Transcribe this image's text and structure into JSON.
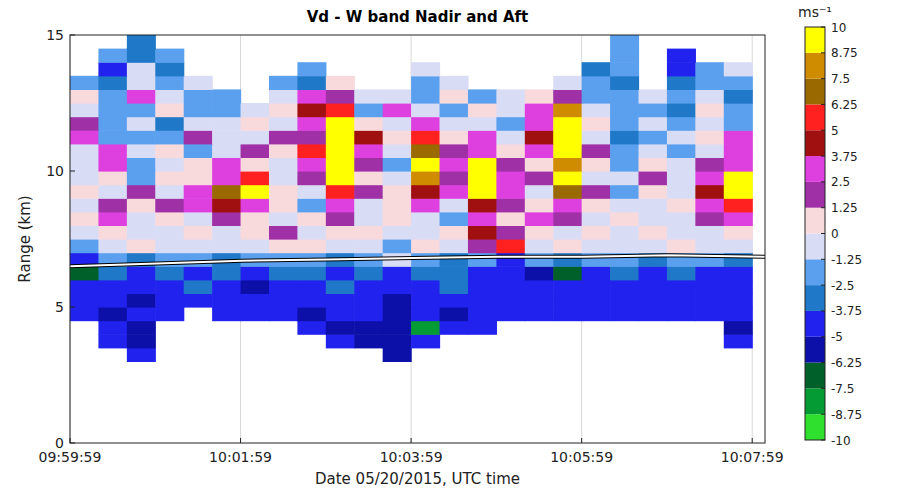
{
  "chart_data": {
    "type": "heatmap",
    "title": "Vd - W band Nadir and Aft",
    "x_label": "Date 05/20/2015, UTC time",
    "y_label": "Range (km)",
    "xlim": [
      35999,
      36488
    ],
    "ylim": [
      0,
      15
    ],
    "xticks": [
      {
        "value": 35999,
        "label": "09:59:59"
      },
      {
        "value": 36119,
        "label": "10:01:59"
      },
      {
        "value": 36239,
        "label": "10:03:59"
      },
      {
        "value": 36359,
        "label": "10:05:59"
      },
      {
        "value": 36479,
        "label": "10:07:59"
      }
    ],
    "yticks": [
      0,
      5,
      10,
      15
    ],
    "grid": true,
    "x": [
      36009,
      36029,
      36049,
      36069,
      36089,
      36109,
      36129,
      36149,
      36169,
      36189,
      36209,
      36229,
      36249,
      36269,
      36289,
      36309,
      36329,
      36349,
      36369,
      36389,
      36409,
      36429,
      36449,
      36469
    ],
    "y": [
      3.25,
      3.75,
      4.25,
      4.75,
      5.25,
      5.75,
      6.25,
      6.75,
      7.25,
      7.75,
      8.25,
      8.75,
      9.25,
      9.75,
      10.25,
      10.75,
      11.25,
      11.75,
      12.25,
      12.75,
      13.25,
      13.75,
      14.25,
      14.75
    ],
    "cells": [
      [
        null,
        null,
        -4.5,
        null,
        null,
        null,
        null,
        null,
        null,
        null,
        null,
        -5.5,
        null,
        null,
        null,
        null,
        null,
        null,
        null,
        null,
        null,
        null,
        null,
        null
      ],
      [
        null,
        -5,
        -5.5,
        null,
        null,
        null,
        null,
        null,
        null,
        -5,
        -5.5,
        -6,
        -5,
        null,
        null,
        null,
        null,
        null,
        null,
        null,
        null,
        null,
        null,
        -5
      ],
      [
        null,
        -5,
        -5.5,
        null,
        null,
        null,
        null,
        null,
        -5,
        -5.5,
        -6,
        -5.5,
        -8,
        -5,
        -4.5,
        null,
        null,
        null,
        null,
        null,
        null,
        null,
        null,
        -5.5
      ],
      [
        -4,
        -5.5,
        -5,
        -5,
        null,
        -5,
        -4.5,
        -5,
        -5.5,
        -5,
        -5,
        -5.5,
        -5,
        -5.5,
        -5,
        -4.5,
        -5,
        -5,
        -4.5,
        -5,
        -4,
        -5,
        -4.5,
        -5
      ],
      [
        -4.5,
        -5,
        -5.5,
        -4,
        -4.5,
        -4,
        -5,
        -4.5,
        -5,
        -4,
        -4.5,
        -5.5,
        -4.5,
        -4,
        -5,
        -4,
        -4.5,
        -4,
        -4,
        -5,
        -4.5,
        -5,
        -4,
        -5
      ],
      [
        -5,
        -4,
        -4.5,
        -4,
        -3.5,
        -4,
        -5.5,
        -4,
        -4.5,
        -3.5,
        -4,
        -4.5,
        -4,
        -3.5,
        -4,
        -4.5,
        -4,
        -5,
        -4.5,
        -4,
        -5,
        -4,
        -4,
        -4.5
      ],
      [
        -7,
        -3,
        -4,
        -3,
        -4,
        -3.5,
        -4.5,
        -3,
        -3,
        -4,
        -3.5,
        -4,
        -3,
        -3.5,
        -4.5,
        -5,
        -5.5,
        -7,
        -4,
        -3,
        -4,
        -3.5,
        -4.5,
        -4
      ],
      [
        -5,
        -2,
        -3,
        -2.5,
        -2,
        -3,
        -2,
        -1.5,
        -2,
        -3,
        -2,
        -1,
        -2.5,
        -3,
        -2,
        -4,
        -2,
        -3,
        -2.5,
        -2,
        -3,
        -2,
        -2.5,
        -3
      ],
      [
        -1.5,
        -0.5,
        0.5,
        -1,
        -0.5,
        -0.5,
        -1,
        0.5,
        0.5,
        -1,
        -0.5,
        -1.5,
        0.5,
        -1,
        2,
        5,
        -0.5,
        1,
        -1,
        -0.5,
        -1,
        0.5,
        -1,
        -0.5
      ],
      [
        -1,
        0.5,
        -1,
        -0.5,
        0.5,
        -1,
        0.5,
        1.5,
        -1,
        0.5,
        1,
        -1,
        -0.5,
        0.5,
        4,
        2,
        1,
        -0.5,
        0.5,
        -1,
        0.5,
        -1,
        -0.5,
        1
      ],
      [
        1,
        2.8,
        -0.5,
        0.5,
        -1,
        2,
        1,
        -0.5,
        0.5,
        2,
        -0.5,
        0.5,
        -1,
        -1.5,
        3,
        1,
        2.8,
        2,
        -1,
        0.5,
        -1,
        -0.5,
        1.5,
        3
      ],
      [
        -0.5,
        2,
        0.5,
        1.5,
        2.8,
        4,
        3,
        0.5,
        -1.5,
        3,
        -1,
        1,
        2.5,
        -0.5,
        4.5,
        2,
        0.5,
        3,
        1,
        -1,
        -0.5,
        0.5,
        2.8,
        6
      ],
      [
        0.5,
        -1,
        1.5,
        -0.5,
        3,
        7,
        9,
        1,
        -1,
        6,
        2,
        0.5,
        4,
        3,
        9,
        2.8,
        -1,
        7,
        2,
        -1.5,
        0.5,
        -1,
        4,
        9.5
      ],
      [
        -1,
        1,
        -2,
        0.5,
        1,
        3,
        6,
        -0.5,
        2,
        9,
        0.5,
        -1,
        8,
        2,
        9.5,
        3,
        2,
        9,
        -0.5,
        -1,
        2,
        -0.5,
        3,
        9
      ],
      [
        -0.5,
        3,
        -1.5,
        -1,
        0.5,
        2.8,
        1,
        -1,
        3,
        9.2,
        2,
        -2,
        9,
        3.5,
        9,
        2,
        1,
        8,
        0.5,
        -1.5,
        0.5,
        -1,
        2,
        2.8
      ],
      [
        -1,
        2.5,
        -1,
        0.5,
        -2,
        -1,
        2,
        1,
        6,
        9.5,
        3,
        -1,
        7,
        2,
        3,
        0.5,
        3.5,
        9.5,
        2,
        -2,
        -1,
        -2,
        -0.5,
        3
      ],
      [
        3,
        -1.5,
        -2,
        -1.5,
        1.5,
        -0.5,
        -1,
        2,
        2,
        9.5,
        4,
        0.5,
        5.5,
        0.5,
        2.8,
        -1,
        4,
        9,
        -0.5,
        -3,
        -2,
        -1,
        0.5,
        2.8
      ],
      [
        1.5,
        -2,
        -1,
        -3,
        -0.5,
        -1,
        0.5,
        -1,
        3,
        9,
        1,
        -1,
        3,
        -1,
        -0.5,
        -1.5,
        2.8,
        9,
        0.5,
        -2.5,
        -1,
        -2,
        -1,
        -1.5
      ],
      [
        -1,
        -2.5,
        -1.5,
        0.5,
        -1.5,
        -2,
        -1,
        0.5,
        4,
        6,
        -1.5,
        2.8,
        -1,
        -2,
        0.5,
        -1,
        3,
        8,
        -1,
        -2,
        -1.5,
        -3,
        0.5,
        -2
      ],
      [
        0.5,
        -2,
        3,
        -1,
        -2,
        -1.5,
        null,
        -1,
        3,
        2,
        -1,
        -0.5,
        -1.5,
        0.5,
        -2,
        -1,
        0.8,
        2,
        -1.5,
        -2.5,
        -1,
        -2.5,
        -0.5,
        -3
      ],
      [
        -1.5,
        -3,
        -0.5,
        -2.5,
        -1,
        null,
        null,
        -2,
        -3.5,
        0.5,
        null,
        null,
        -2,
        -1,
        null,
        null,
        null,
        -0.5,
        -2,
        -3,
        null,
        -3.5,
        -1.5,
        -2.5
      ],
      [
        null,
        -4,
        -1,
        -3,
        null,
        null,
        null,
        null,
        -2,
        null,
        null,
        null,
        -0.5,
        null,
        null,
        null,
        null,
        null,
        -3,
        -2,
        null,
        -4.5,
        -2,
        -1
      ],
      [
        null,
        -2.5,
        -3.5,
        -2,
        null,
        null,
        null,
        null,
        null,
        null,
        null,
        null,
        null,
        null,
        null,
        null,
        null,
        null,
        null,
        -1.5,
        null,
        -4,
        null,
        null
      ],
      [
        null,
        null,
        -3,
        null,
        null,
        null,
        null,
        null,
        null,
        null,
        null,
        null,
        null,
        null,
        null,
        null,
        null,
        null,
        null,
        -2,
        null,
        null,
        null,
        null
      ]
    ],
    "series": [
      {
        "type": "line",
        "color": "#ffffff",
        "x": [
          35999,
          36060,
          36120,
          36180,
          36240,
          36300,
          36360,
          36420,
          36488
        ],
        "values": [
          6.5,
          6.6,
          6.7,
          6.75,
          6.8,
          6.85,
          6.85,
          6.9,
          6.85
        ]
      }
    ],
    "colorbar": {
      "label": "ms⁻¹",
      "range": [
        -10,
        10
      ],
      "ticks": [
        -10,
        -8.75,
        -7.5,
        -6.25,
        -5,
        -3.75,
        -2.5,
        -1.25,
        0,
        1.25,
        2.5,
        3.75,
        5,
        6.25,
        7.5,
        8.75,
        10
      ],
      "colors": [
        "#2fe02f",
        "#049a34",
        "#00602a",
        "#0c10a8",
        "#2222ee",
        "#1f78c8",
        "#5ba0ee",
        "#d9dcf5",
        "#f8dadd",
        "#a030a6",
        "#de40e0",
        "#a01010",
        "#ff2020",
        "#9a6a00",
        "#d08c00",
        "#ffff00"
      ]
    }
  }
}
